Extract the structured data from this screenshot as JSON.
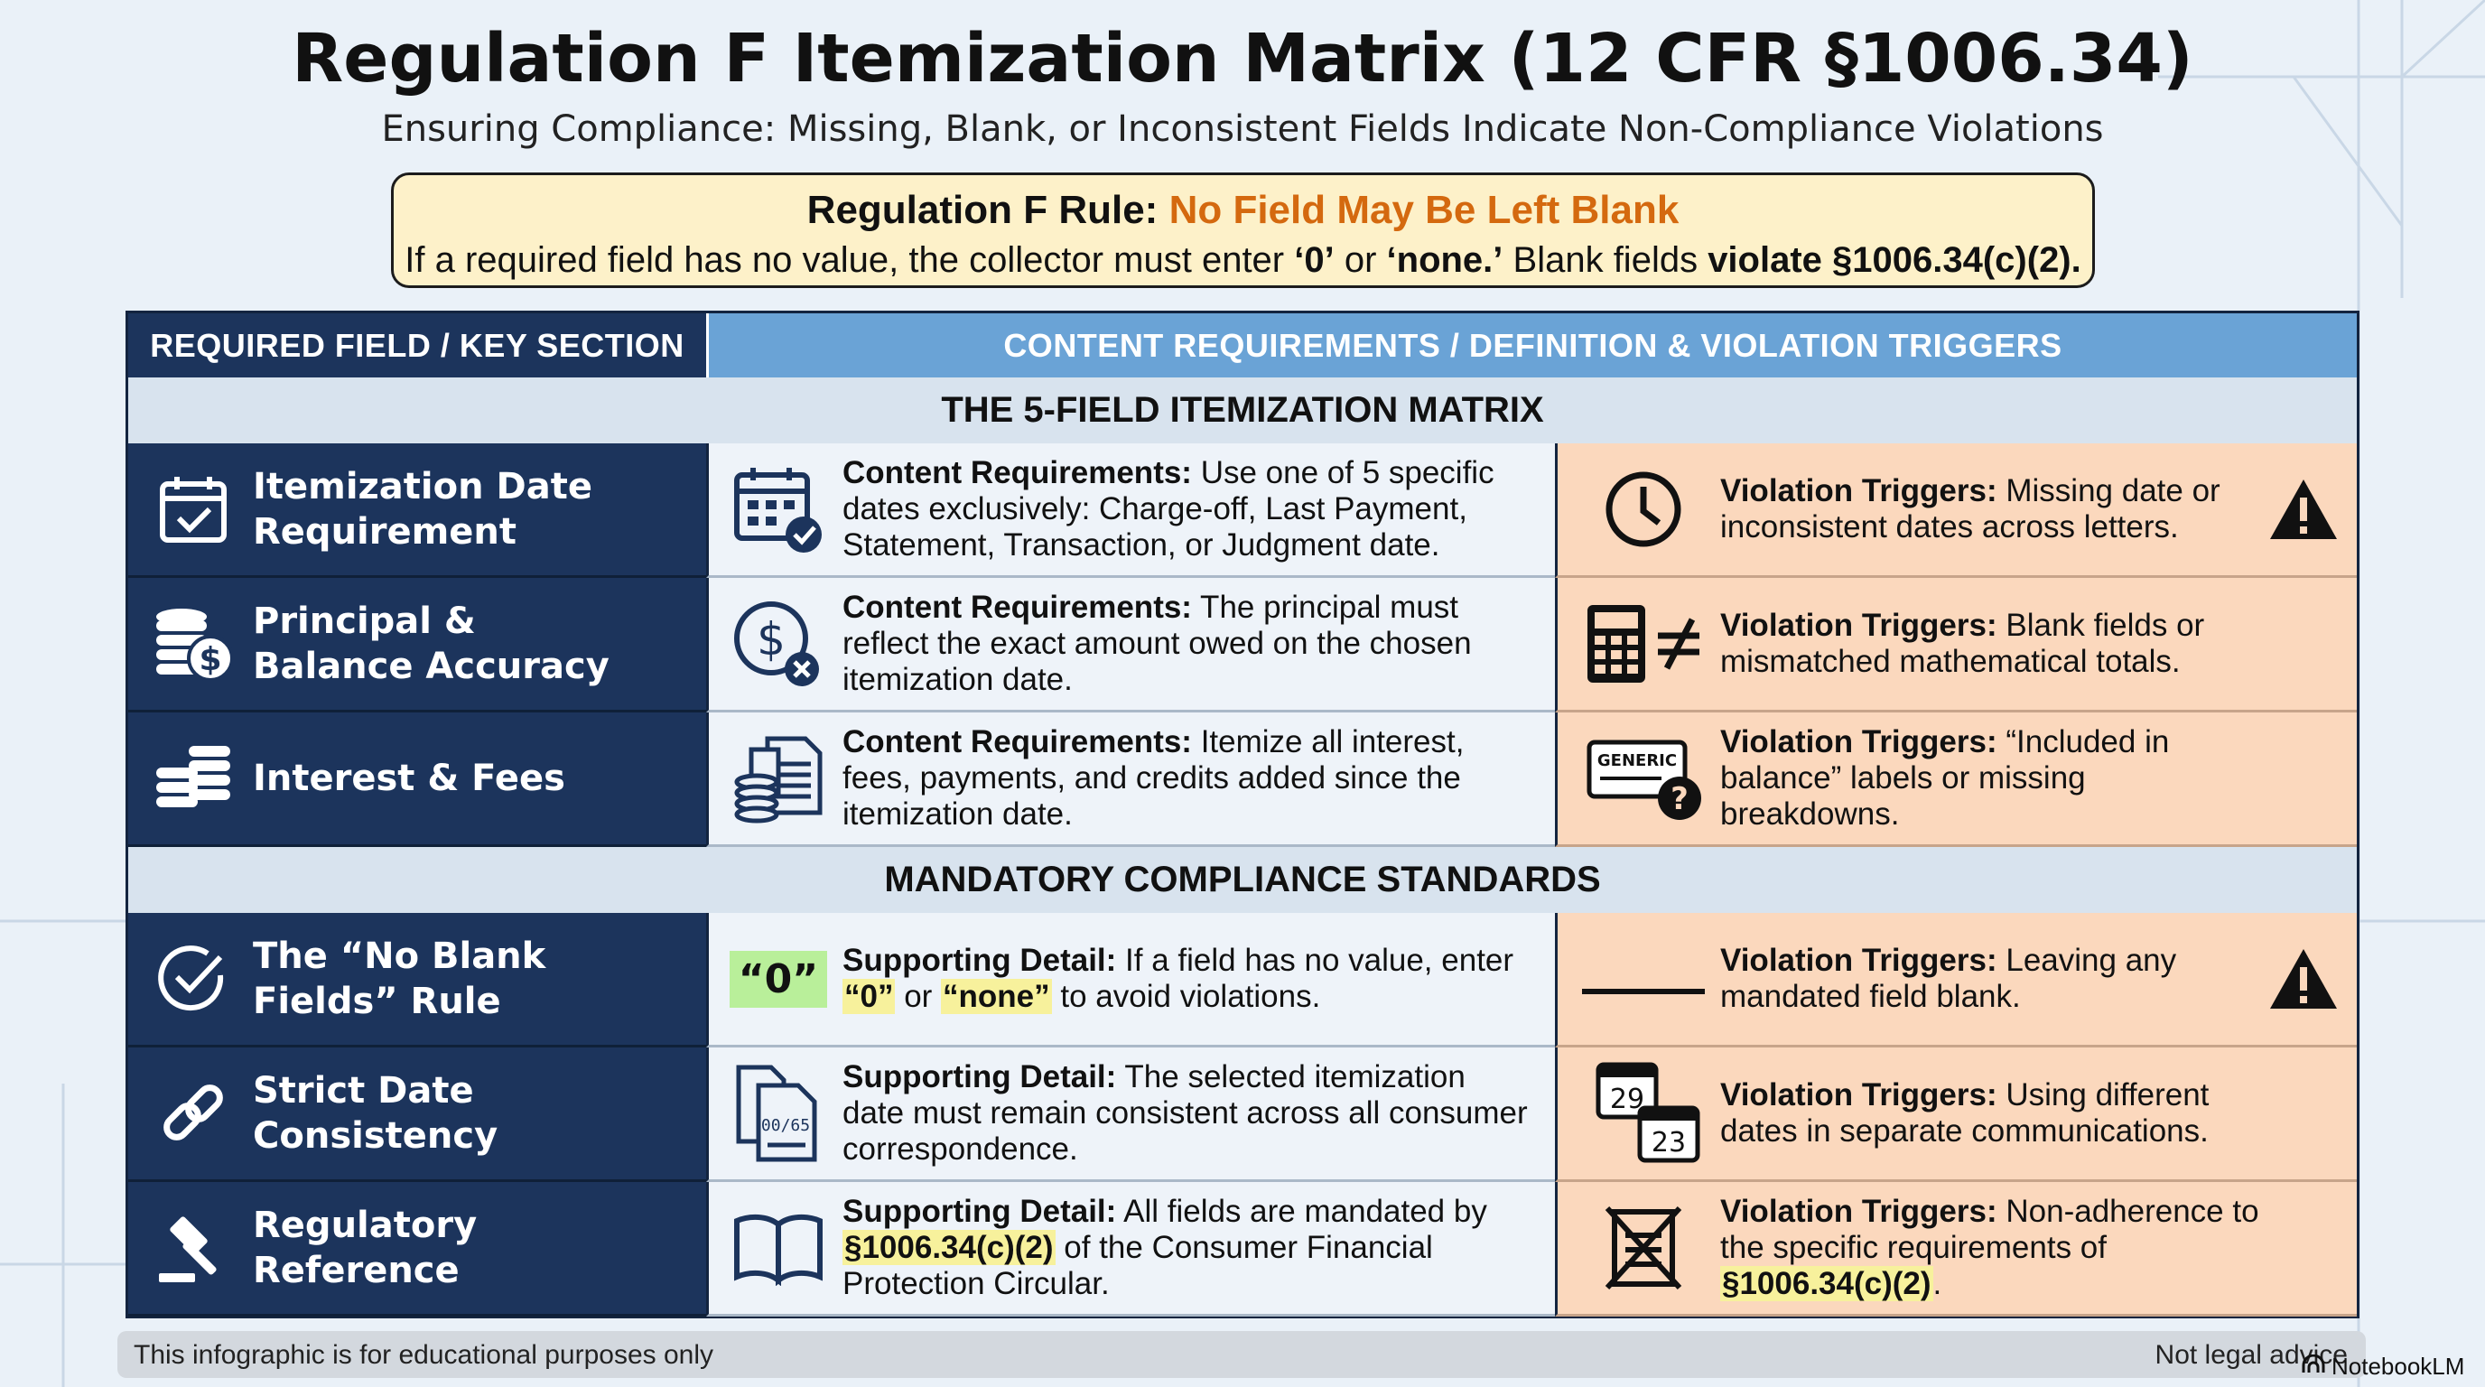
{
  "title": "Regulation F Itemization Matrix (12 CFR §1006.34)",
  "subtitle": "Ensuring Compliance: Missing, Blank, or Inconsistent Fields Indicate Non-Compliance Violations",
  "rule": {
    "head_prefix": "Regulation F Rule:",
    "head_highlight": "No Field May Be Left Blank",
    "body_1": "If a required field has no value, the collector must enter ",
    "body_zero": "‘0’",
    "body_or": " or ",
    "body_none": "‘none.’",
    "body_2": " Blank fields ",
    "body_violate": "violate §1006.34(c)(2)."
  },
  "table": {
    "header_left": "REQUIRED FIELD / KEY SECTION",
    "header_right": "CONTENT REQUIREMENTS / DEFINITION & VIOLATION TRIGGERS",
    "section_1": "THE 5-FIELD ITEMIZATION MATRIX",
    "section_2": "MANDATORY COMPLIANCE STANDARDS",
    "rows": [
      {
        "label_1": "Itemization Date",
        "label_2": "Requirement",
        "left_icon": "calendar-check-icon",
        "mid_icon": "calendar-grid-check-icon",
        "mid_key": "Content Requirements:",
        "mid_text": " Use one of 5 specific dates exclusively: Charge-off, Last Payment, Statement, Transaction, or Judgment date.",
        "right_icon": "clock-icon",
        "right_key": "Violation Triggers:",
        "right_text": " Missing date or inconsistent dates across letters.",
        "warning": true
      },
      {
        "label_1": "Principal &",
        "label_2": "Balance Accuracy",
        "left_icon": "coins-dollar-icon",
        "mid_icon": "dollar-x-icon",
        "mid_key": "Content Requirements:",
        "mid_text": " The principal must reflect the exact amount owed on the chosen itemization date.",
        "right_icon": "calculator-not-equal-icon",
        "right_key": "Violation Triggers:",
        "right_text": " Blank fields or mismatched mathematical totals.",
        "warning": false
      },
      {
        "label_1": "Interest & Fees",
        "label_2": "",
        "left_icon": "coin-stack-icon",
        "mid_icon": "document-coins-icon",
        "mid_key": "Content Requirements:",
        "mid_text": " Itemize all interest, fees, payments, and credits added since the itemization date.",
        "right_icon": "generic-label-question-icon",
        "right_icon_text": "GENERIC",
        "right_key": "Violation Triggers:",
        "right_text": " “Included in balance” labels or missing breakdowns.",
        "warning": false
      },
      {
        "label_1": "The “No Blank",
        "label_2": "Fields” Rule",
        "left_icon": "circle-check-icon",
        "mid_badge": "“0”",
        "mid_key": "Supporting Detail:",
        "mid_text_1": " If a field has no value, enter ",
        "mid_hl_1": "“0”",
        "mid_text_or": " or ",
        "mid_hl_2": "“none”",
        "mid_text_2": " to avoid violations.",
        "right_icon": "blank-line-icon",
        "right_key": "Violation Triggers:",
        "right_text": " Leaving any mandated field blank.",
        "warning": true
      },
      {
        "label_1": "Strict Date",
        "label_2": "Consistency",
        "left_icon": "link-icon",
        "mid_icon": "documents-icon",
        "mid_icon_text": "00/65",
        "mid_key": "Supporting Detail:",
        "mid_text": " The selected itemization date must remain consistent across all consumer correspondence.",
        "right_icon": "two-calendars-icon",
        "right_cal_1": "29",
        "right_cal_2": "23",
        "right_key": "Violation Triggers:",
        "right_text": " Using different dates in separate communications.",
        "warning": false
      },
      {
        "label_1": "Regulatory",
        "label_2": "Reference",
        "left_icon": "gavel-icon",
        "mid_icon": "open-book-icon",
        "mid_key": "Supporting Detail:",
        "mid_text_1": " All fields are mandated by ",
        "mid_hl_1": "§1006.34(c)(2)",
        "mid_text_2": " of the Consumer Financial Protection Circular.",
        "right_icon": "crossed-document-icon",
        "right_key": "Violation Triggers:",
        "right_text_1": " Non-adherence to the specific requirements of ",
        "right_hl": "§1006.34(c)(2)",
        "right_text_2": ".",
        "warning": false
      }
    ]
  },
  "footer": {
    "left": "This infographic is for educational purposes only",
    "right": "Not legal advice",
    "brand": "NotebookLM"
  }
}
